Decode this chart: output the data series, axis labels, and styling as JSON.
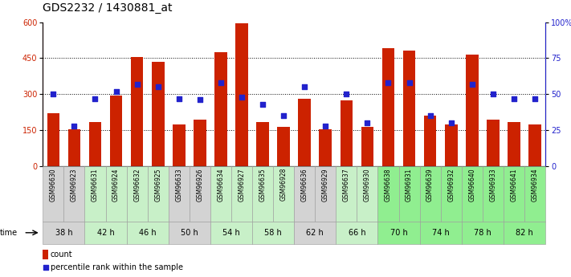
{
  "title": "GDS2232 / 1430881_at",
  "samples": [
    "GSM96630",
    "GSM96923",
    "GSM96631",
    "GSM96924",
    "GSM96632",
    "GSM96925",
    "GSM96633",
    "GSM96926",
    "GSM96634",
    "GSM96927",
    "GSM96635",
    "GSM96928",
    "GSM96636",
    "GSM96929",
    "GSM96637",
    "GSM96930",
    "GSM96638",
    "GSM96931",
    "GSM96639",
    "GSM96932",
    "GSM96640",
    "GSM96933",
    "GSM96641",
    "GSM96934"
  ],
  "counts": [
    220,
    155,
    185,
    295,
    455,
    435,
    175,
    195,
    475,
    595,
    185,
    165,
    280,
    155,
    275,
    165,
    490,
    480,
    210,
    175,
    465,
    195,
    185,
    175
  ],
  "percentile_ranks": [
    50,
    28,
    47,
    52,
    57,
    55,
    47,
    46,
    58,
    48,
    43,
    35,
    55,
    28,
    50,
    30,
    58,
    58,
    35,
    30,
    57,
    50,
    47,
    47
  ],
  "time_groups": [
    {
      "label": "38 h",
      "start": 0,
      "end": 2,
      "color": "#d3d3d3"
    },
    {
      "label": "42 h",
      "start": 2,
      "end": 4,
      "color": "#c8f0c8"
    },
    {
      "label": "46 h",
      "start": 4,
      "end": 6,
      "color": "#c8f0c8"
    },
    {
      "label": "50 h",
      "start": 6,
      "end": 8,
      "color": "#d3d3d3"
    },
    {
      "label": "54 h",
      "start": 8,
      "end": 10,
      "color": "#c8f0c8"
    },
    {
      "label": "58 h",
      "start": 10,
      "end": 12,
      "color": "#c8f0c8"
    },
    {
      "label": "62 h",
      "start": 12,
      "end": 14,
      "color": "#d3d3d3"
    },
    {
      "label": "66 h",
      "start": 14,
      "end": 16,
      "color": "#c8f0c8"
    },
    {
      "label": "70 h",
      "start": 16,
      "end": 18,
      "color": "#90ee90"
    },
    {
      "label": "74 h",
      "start": 18,
      "end": 20,
      "color": "#90ee90"
    },
    {
      "label": "78 h",
      "start": 20,
      "end": 22,
      "color": "#90ee90"
    },
    {
      "label": "82 h",
      "start": 22,
      "end": 24,
      "color": "#90ee90"
    }
  ],
  "sample_bg_colors": [
    "#d3d3d3",
    "#d3d3d3",
    "#c8f0c8",
    "#c8f0c8",
    "#c8f0c8",
    "#c8f0c8",
    "#d3d3d3",
    "#d3d3d3",
    "#c8f0c8",
    "#c8f0c8",
    "#c8f0c8",
    "#c8f0c8",
    "#d3d3d3",
    "#d3d3d3",
    "#c8f0c8",
    "#c8f0c8",
    "#90ee90",
    "#90ee90",
    "#90ee90",
    "#90ee90",
    "#90ee90",
    "#90ee90",
    "#90ee90",
    "#90ee90"
  ],
  "bar_color": "#cc2200",
  "dot_color": "#2222cc",
  "ylim_left": [
    0,
    600
  ],
  "ylim_right": [
    0,
    100
  ],
  "yticks_left": [
    0,
    150,
    300,
    450,
    600
  ],
  "yticks_right": [
    0,
    25,
    50,
    75,
    100
  ],
  "title_fontsize": 10,
  "tick_fontsize": 7,
  "sample_fontsize": 5.5,
  "time_fontsize": 7,
  "legend_fontsize": 7,
  "dot_size": 22
}
